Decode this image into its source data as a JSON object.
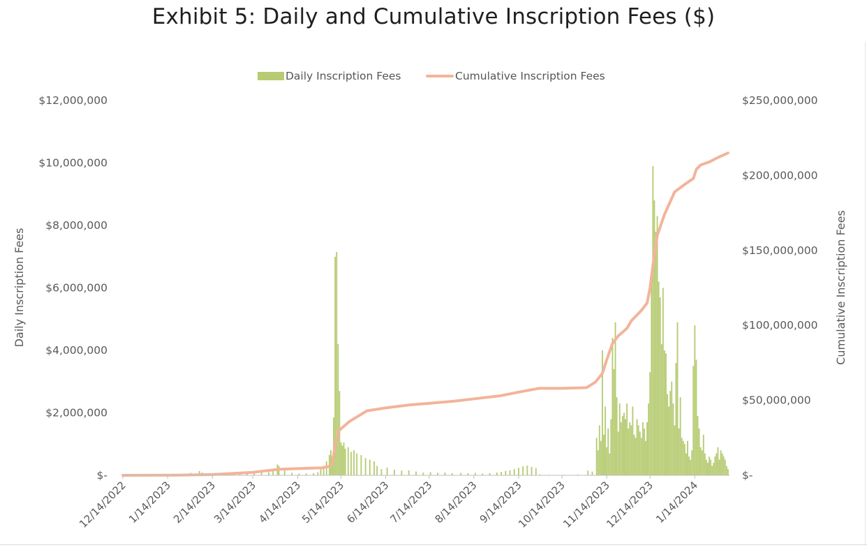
{
  "page": {
    "title": "Exhibit 5: Daily and Cumulative Inscription Fees ($)"
  },
  "legend": {
    "daily": "Daily Inscription Fees",
    "cumulative": "Cumulative Inscription Fees"
  },
  "colors": {
    "bars": "#b6cb72",
    "line": "#f2b49a",
    "axis": "#bfbfbf",
    "tick_text": "#595959"
  },
  "chart_data": {
    "type": "bar",
    "title": "Exhibit 5: Daily and Cumulative Inscription Fees ($)",
    "ylabel": "Daily Inscription Fees",
    "y2label": "Cumulative Inscription Fees",
    "ylim": [
      0,
      12000000
    ],
    "y2lim": [
      0,
      250000000
    ],
    "grid": false,
    "legend_position": "top-center",
    "x_ticks": [
      "12/14/2022",
      "1/14/2023",
      "2/14/2023",
      "3/14/2023",
      "4/14/2023",
      "5/14/2023",
      "6/14/2023",
      "7/14/2023",
      "8/14/2023",
      "9/14/2023",
      "10/14/2023",
      "11/14/2023",
      "12/14/2023",
      "1/14/2024"
    ],
    "y_ticks": [
      "$-",
      "$2,000,000",
      "$4,000,000",
      "$6,000,000",
      "$8,000,000",
      "$10,000,000",
      "$12,000,000"
    ],
    "y2_ticks": [
      "$-",
      "$50,000,000",
      "$100,000,000",
      "$150,000,000",
      "$200,000,000",
      "$250,000,000"
    ],
    "x_range": [
      "2022-12-14",
      "2024-02-07"
    ],
    "series": [
      {
        "name": "Daily Inscription Fees",
        "type": "bar",
        "axis": "left",
        "points": [
          [
            "2023-01-25",
            40000
          ],
          [
            "2023-01-30",
            80000
          ],
          [
            "2023-02-03",
            50000
          ],
          [
            "2023-02-05",
            140000
          ],
          [
            "2023-02-07",
            90000
          ],
          [
            "2023-02-10",
            60000
          ],
          [
            "2023-02-15",
            40000
          ],
          [
            "2023-02-20",
            70000
          ],
          [
            "2023-02-25",
            50000
          ],
          [
            "2023-03-01",
            60000
          ],
          [
            "2023-03-05",
            70000
          ],
          [
            "2023-03-10",
            60000
          ],
          [
            "2023-03-15",
            80000
          ],
          [
            "2023-03-20",
            90000
          ],
          [
            "2023-03-25",
            100000
          ],
          [
            "2023-03-28",
            180000
          ],
          [
            "2023-03-31",
            350000
          ],
          [
            "2023-04-01",
            300000
          ],
          [
            "2023-04-05",
            150000
          ],
          [
            "2023-04-10",
            80000
          ],
          [
            "2023-04-15",
            50000
          ],
          [
            "2023-04-20",
            60000
          ],
          [
            "2023-04-25",
            70000
          ],
          [
            "2023-04-28",
            100000
          ],
          [
            "2023-04-30",
            200000
          ],
          [
            "2023-05-02",
            300000
          ],
          [
            "2023-05-04",
            450000
          ],
          [
            "2023-05-06",
            650000
          ],
          [
            "2023-05-07",
            800000
          ],
          [
            "2023-05-08",
            600000
          ],
          [
            "2023-05-09",
            1850000
          ],
          [
            "2023-05-10",
            7000000
          ],
          [
            "2023-05-11",
            7150000
          ],
          [
            "2023-05-12",
            4200000
          ],
          [
            "2023-05-13",
            2700000
          ],
          [
            "2023-05-14",
            1050000
          ],
          [
            "2023-05-15",
            950000
          ],
          [
            "2023-05-16",
            1050000
          ],
          [
            "2023-05-17",
            850000
          ],
          [
            "2023-05-19",
            900000
          ],
          [
            "2023-05-21",
            750000
          ],
          [
            "2023-05-23",
            800000
          ],
          [
            "2023-05-25",
            700000
          ],
          [
            "2023-05-28",
            650000
          ],
          [
            "2023-05-31",
            550000
          ],
          [
            "2023-06-03",
            500000
          ],
          [
            "2023-06-06",
            450000
          ],
          [
            "2023-06-08",
            300000
          ],
          [
            "2023-06-11",
            200000
          ],
          [
            "2023-06-15",
            250000
          ],
          [
            "2023-06-20",
            180000
          ],
          [
            "2023-06-25",
            150000
          ],
          [
            "2023-06-30",
            160000
          ],
          [
            "2023-07-05",
            120000
          ],
          [
            "2023-07-10",
            90000
          ],
          [
            "2023-07-15",
            100000
          ],
          [
            "2023-07-20",
            80000
          ],
          [
            "2023-07-25",
            90000
          ],
          [
            "2023-07-30",
            70000
          ],
          [
            "2023-08-05",
            80000
          ],
          [
            "2023-08-10",
            70000
          ],
          [
            "2023-08-15",
            80000
          ],
          [
            "2023-08-20",
            60000
          ],
          [
            "2023-08-25",
            70000
          ],
          [
            "2023-08-30",
            90000
          ],
          [
            "2023-09-02",
            110000
          ],
          [
            "2023-09-05",
            140000
          ],
          [
            "2023-09-08",
            160000
          ],
          [
            "2023-09-11",
            200000
          ],
          [
            "2023-09-14",
            240000
          ],
          [
            "2023-09-17",
            290000
          ],
          [
            "2023-09-20",
            310000
          ],
          [
            "2023-09-23",
            270000
          ],
          [
            "2023-09-26",
            230000
          ],
          [
            "2023-09-29",
            30000
          ],
          [
            "2023-10-05",
            20000
          ],
          [
            "2023-10-15",
            20000
          ],
          [
            "2023-10-25",
            30000
          ],
          [
            "2023-11-01",
            150000
          ],
          [
            "2023-11-04",
            120000
          ],
          [
            "2023-11-07",
            1200000
          ],
          [
            "2023-11-08",
            800000
          ],
          [
            "2023-11-09",
            1600000
          ],
          [
            "2023-11-10",
            1100000
          ],
          [
            "2023-11-11",
            4000000
          ],
          [
            "2023-11-12",
            1300000
          ],
          [
            "2023-11-13",
            2200000
          ],
          [
            "2023-11-14",
            900000
          ],
          [
            "2023-11-15",
            1500000
          ],
          [
            "2023-11-16",
            700000
          ],
          [
            "2023-11-17",
            1800000
          ],
          [
            "2023-11-18",
            4400000
          ],
          [
            "2023-11-19",
            3400000
          ],
          [
            "2023-11-20",
            4900000
          ],
          [
            "2023-11-21",
            2500000
          ],
          [
            "2023-11-22",
            1400000
          ],
          [
            "2023-11-23",
            2300000
          ],
          [
            "2023-11-24",
            1700000
          ],
          [
            "2023-11-25",
            1900000
          ],
          [
            "2023-11-26",
            2000000
          ],
          [
            "2023-11-27",
            1800000
          ],
          [
            "2023-11-28",
            2300000
          ],
          [
            "2023-11-29",
            1500000
          ],
          [
            "2023-11-30",
            1700000
          ],
          [
            "2023-12-01",
            1600000
          ],
          [
            "2023-12-02",
            2200000
          ],
          [
            "2023-12-03",
            1300000
          ],
          [
            "2023-12-04",
            1200000
          ],
          [
            "2023-12-05",
            1800000
          ],
          [
            "2023-12-06",
            1600000
          ],
          [
            "2023-12-07",
            1400000
          ],
          [
            "2023-12-08",
            1200000
          ],
          [
            "2023-12-09",
            1700000
          ],
          [
            "2023-12-10",
            1500000
          ],
          [
            "2023-12-11",
            1100000
          ],
          [
            "2023-12-12",
            1700000
          ],
          [
            "2023-12-13",
            2300000
          ],
          [
            "2023-12-14",
            3300000
          ],
          [
            "2023-12-15",
            6300000
          ],
          [
            "2023-12-16",
            9900000
          ],
          [
            "2023-12-17",
            8800000
          ],
          [
            "2023-12-18",
            7800000
          ],
          [
            "2023-12-19",
            8300000
          ],
          [
            "2023-12-20",
            6200000
          ],
          [
            "2023-12-21",
            5700000
          ],
          [
            "2023-12-22",
            4200000
          ],
          [
            "2023-12-23",
            6000000
          ],
          [
            "2023-12-24",
            4000000
          ],
          [
            "2023-12-25",
            3900000
          ],
          [
            "2023-12-26",
            2600000
          ],
          [
            "2023-12-27",
            2200000
          ],
          [
            "2023-12-28",
            2700000
          ],
          [
            "2023-12-29",
            3000000
          ],
          [
            "2023-12-30",
            2300000
          ],
          [
            "2023-12-31",
            1600000
          ],
          [
            "2024-01-01",
            3600000
          ],
          [
            "2024-01-02",
            4900000
          ],
          [
            "2024-01-03",
            1500000
          ],
          [
            "2024-01-04",
            2500000
          ],
          [
            "2024-01-05",
            1200000
          ],
          [
            "2024-01-06",
            1100000
          ],
          [
            "2024-01-07",
            1000000
          ],
          [
            "2024-01-08",
            700000
          ],
          [
            "2024-01-09",
            1100000
          ],
          [
            "2024-01-10",
            600000
          ],
          [
            "2024-01-11",
            500000
          ],
          [
            "2024-01-12",
            800000
          ],
          [
            "2024-01-13",
            3500000
          ],
          [
            "2024-01-14",
            4800000
          ],
          [
            "2024-01-15",
            3700000
          ],
          [
            "2024-01-16",
            1900000
          ],
          [
            "2024-01-17",
            1500000
          ],
          [
            "2024-01-18",
            900000
          ],
          [
            "2024-01-19",
            800000
          ],
          [
            "2024-01-20",
            1300000
          ],
          [
            "2024-01-21",
            700000
          ],
          [
            "2024-01-22",
            500000
          ],
          [
            "2024-01-23",
            400000
          ],
          [
            "2024-01-24",
            600000
          ],
          [
            "2024-01-25",
            500000
          ],
          [
            "2024-01-26",
            300000
          ],
          [
            "2024-01-27",
            400000
          ],
          [
            "2024-01-28",
            600000
          ],
          [
            "2024-01-29",
            700000
          ],
          [
            "2024-01-30",
            900000
          ],
          [
            "2024-01-31",
            500000
          ],
          [
            "2024-02-01",
            800000
          ],
          [
            "2024-02-02",
            700000
          ],
          [
            "2024-02-03",
            600000
          ],
          [
            "2024-02-04",
            500000
          ],
          [
            "2024-02-05",
            300000
          ],
          [
            "2024-02-06",
            200000
          ]
        ]
      },
      {
        "name": "Cumulative Inscription Fees",
        "type": "line",
        "axis": "right",
        "points": [
          [
            "2022-12-14",
            0
          ],
          [
            "2023-01-20",
            100000
          ],
          [
            "2023-02-14",
            500000
          ],
          [
            "2023-03-14",
            2000000
          ],
          [
            "2023-04-01",
            4000000
          ],
          [
            "2023-04-14",
            4500000
          ],
          [
            "2023-05-01",
            5000000
          ],
          [
            "2023-05-06",
            6000000
          ],
          [
            "2023-05-08",
            8000000
          ],
          [
            "2023-05-10",
            20000000
          ],
          [
            "2023-05-12",
            29000000
          ],
          [
            "2023-05-14",
            31000000
          ],
          [
            "2023-05-20",
            36000000
          ],
          [
            "2023-06-01",
            43000000
          ],
          [
            "2023-06-14",
            45000000
          ],
          [
            "2023-07-01",
            47000000
          ],
          [
            "2023-07-14",
            48000000
          ],
          [
            "2023-08-01",
            49500000
          ],
          [
            "2023-08-14",
            51000000
          ],
          [
            "2023-09-01",
            53000000
          ],
          [
            "2023-09-14",
            55500000
          ],
          [
            "2023-09-28",
            58000000
          ],
          [
            "2023-10-14",
            58000000
          ],
          [
            "2023-10-31",
            58500000
          ],
          [
            "2023-11-06",
            62000000
          ],
          [
            "2023-11-11",
            68000000
          ],
          [
            "2023-11-14",
            77000000
          ],
          [
            "2023-11-18",
            88000000
          ],
          [
            "2023-11-22",
            93000000
          ],
          [
            "2023-11-28",
            98000000
          ],
          [
            "2023-12-01",
            103000000
          ],
          [
            "2023-12-08",
            110000000
          ],
          [
            "2023-12-12",
            115000000
          ],
          [
            "2023-12-14",
            125000000
          ],
          [
            "2023-12-16",
            140000000
          ],
          [
            "2023-12-19",
            160000000
          ],
          [
            "2023-12-24",
            174000000
          ],
          [
            "2023-12-31",
            189000000
          ],
          [
            "2024-01-07",
            194000000
          ],
          [
            "2024-01-13",
            198000000
          ],
          [
            "2024-01-15",
            204000000
          ],
          [
            "2024-01-18",
            207000000
          ],
          [
            "2024-01-24",
            209000000
          ],
          [
            "2024-01-30",
            212000000
          ],
          [
            "2024-02-06",
            215000000
          ]
        ]
      }
    ]
  }
}
